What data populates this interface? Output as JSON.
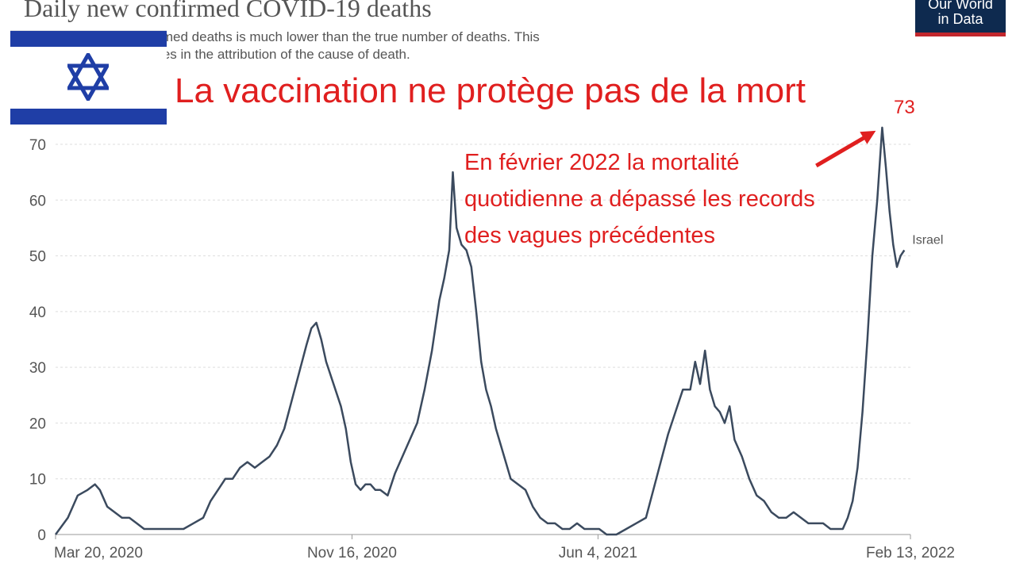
{
  "header": {
    "title": "Daily new confirmed COVID-19 deaths",
    "subtitle_line1": "es the number of confirmed deaths is much lower than the true number of deaths. This",
    "subtitle_line2": "ed testing and challenges in the attribution of the cause of death."
  },
  "logo": {
    "line1": "Our World",
    "line2": "in Data"
  },
  "annotations": {
    "headline": "La vaccination ne protège pas  de la mort",
    "note_lines": [
      "En février 2022 la mortalité",
      "quotidienne  a dépassé les records",
      "des vagues précédentes"
    ],
    "peak_label": "73"
  },
  "colors": {
    "line": "#3b4a5e",
    "annotation": "#e01f1f",
    "flag_blue": "#1f3ea6",
    "logo_bg": "#0e2a4f"
  },
  "chart_data": {
    "type": "line",
    "title": "Daily new confirmed COVID-19 deaths",
    "x_tick_labels": [
      "Mar 20, 2020",
      "Nov 16, 2020",
      "Jun 4, 2021",
      "Feb 13, 2022"
    ],
    "x_tick_days": [
      0,
      241,
      441,
      695
    ],
    "y_ticks": [
      0,
      10,
      20,
      30,
      40,
      50,
      60,
      70
    ],
    "ylim": [
      0,
      75
    ],
    "grid": "horizontal dashed",
    "series": [
      {
        "name": "Israel",
        "points": [
          [
            0,
            0
          ],
          [
            10,
            3
          ],
          [
            18,
            7
          ],
          [
            26,
            8
          ],
          [
            32,
            9
          ],
          [
            36,
            8
          ],
          [
            42,
            5
          ],
          [
            48,
            4
          ],
          [
            54,
            3
          ],
          [
            60,
            3
          ],
          [
            66,
            2
          ],
          [
            72,
            1
          ],
          [
            80,
            1
          ],
          [
            88,
            1
          ],
          [
            96,
            1
          ],
          [
            104,
            1
          ],
          [
            112,
            2
          ],
          [
            120,
            3
          ],
          [
            126,
            6
          ],
          [
            132,
            8
          ],
          [
            138,
            10
          ],
          [
            144,
            10
          ],
          [
            150,
            12
          ],
          [
            156,
            13
          ],
          [
            162,
            12
          ],
          [
            168,
            13
          ],
          [
            174,
            14
          ],
          [
            180,
            16
          ],
          [
            186,
            19
          ],
          [
            192,
            24
          ],
          [
            198,
            29
          ],
          [
            204,
            34
          ],
          [
            208,
            37
          ],
          [
            212,
            38
          ],
          [
            216,
            35
          ],
          [
            220,
            31
          ],
          [
            226,
            27
          ],
          [
            232,
            23
          ],
          [
            236,
            19
          ],
          [
            240,
            13
          ],
          [
            244,
            9
          ],
          [
            248,
            8
          ],
          [
            252,
            9
          ],
          [
            256,
            9
          ],
          [
            260,
            8
          ],
          [
            264,
            8
          ],
          [
            270,
            7
          ],
          [
            276,
            11
          ],
          [
            282,
            14
          ],
          [
            288,
            17
          ],
          [
            294,
            20
          ],
          [
            300,
            26
          ],
          [
            306,
            33
          ],
          [
            312,
            42
          ],
          [
            316,
            46
          ],
          [
            320,
            51
          ],
          [
            323,
            65
          ],
          [
            326,
            55
          ],
          [
            330,
            52
          ],
          [
            334,
            51
          ],
          [
            338,
            48
          ],
          [
            342,
            40
          ],
          [
            346,
            31
          ],
          [
            350,
            26
          ],
          [
            354,
            23
          ],
          [
            358,
            19
          ],
          [
            362,
            16
          ],
          [
            366,
            13
          ],
          [
            370,
            10
          ],
          [
            376,
            9
          ],
          [
            382,
            8
          ],
          [
            388,
            5
          ],
          [
            394,
            3
          ],
          [
            400,
            2
          ],
          [
            406,
            2
          ],
          [
            412,
            1
          ],
          [
            418,
            1
          ],
          [
            424,
            2
          ],
          [
            430,
            1
          ],
          [
            436,
            1
          ],
          [
            442,
            1
          ],
          [
            448,
            0
          ],
          [
            456,
            0
          ],
          [
            464,
            1
          ],
          [
            472,
            2
          ],
          [
            480,
            3
          ],
          [
            486,
            8
          ],
          [
            492,
            13
          ],
          [
            498,
            18
          ],
          [
            504,
            22
          ],
          [
            510,
            26
          ],
          [
            516,
            26
          ],
          [
            520,
            31
          ],
          [
            524,
            27
          ],
          [
            528,
            33
          ],
          [
            532,
            26
          ],
          [
            536,
            23
          ],
          [
            540,
            22
          ],
          [
            544,
            20
          ],
          [
            548,
            23
          ],
          [
            552,
            17
          ],
          [
            558,
            14
          ],
          [
            564,
            10
          ],
          [
            570,
            7
          ],
          [
            576,
            6
          ],
          [
            582,
            4
          ],
          [
            588,
            3
          ],
          [
            594,
            3
          ],
          [
            600,
            4
          ],
          [
            606,
            3
          ],
          [
            612,
            2
          ],
          [
            618,
            2
          ],
          [
            624,
            2
          ],
          [
            630,
            1
          ],
          [
            636,
            1
          ],
          [
            640,
            1
          ],
          [
            644,
            3
          ],
          [
            648,
            6
          ],
          [
            652,
            12
          ],
          [
            656,
            22
          ],
          [
            660,
            35
          ],
          [
            664,
            50
          ],
          [
            668,
            60
          ],
          [
            672,
            73
          ],
          [
            675,
            66
          ],
          [
            678,
            58
          ],
          [
            681,
            52
          ],
          [
            684,
            48
          ],
          [
            687,
            50
          ],
          [
            690,
            51
          ]
        ]
      }
    ]
  }
}
